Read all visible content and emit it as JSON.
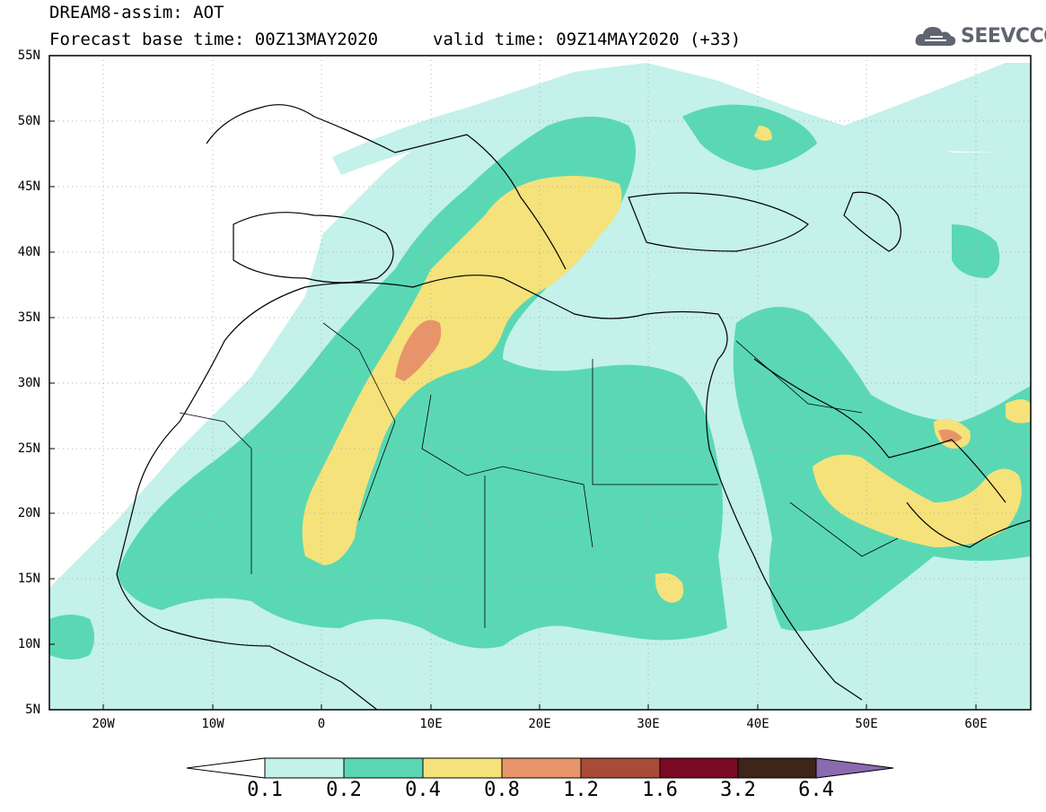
{
  "header": {
    "line1": "DREAM8-assim: AOT",
    "line2": "Forecast base time: 00Z13MAY2020",
    "line3": "valid time: 09Z14MAY2020 (+33)"
  },
  "logo": {
    "text": "SEEVCCC",
    "icon": "cloud-icon"
  },
  "map": {
    "lat_labels": [
      "55N",
      "50N",
      "45N",
      "40N",
      "35N",
      "30N",
      "25N",
      "20N",
      "15N",
      "10N",
      "5N"
    ],
    "lon_labels": [
      "20W",
      "10W",
      "0",
      "10E",
      "20E",
      "30E",
      "40E",
      "50E",
      "60E"
    ],
    "lon_range": [
      -25,
      65
    ],
    "lat_range": [
      5,
      55
    ]
  },
  "colorbar": {
    "labels": [
      "0.1",
      "0.2",
      "0.4",
      "0.8",
      "1.2",
      "1.6",
      "3.2",
      "6.4"
    ],
    "colors": [
      "#ffffff",
      "#c4f1ea",
      "#5ad8b4",
      "#f5e27a",
      "#e8946a",
      "#a84c38",
      "#7a0a24",
      "#3e2518",
      "#8c6ab0"
    ]
  }
}
